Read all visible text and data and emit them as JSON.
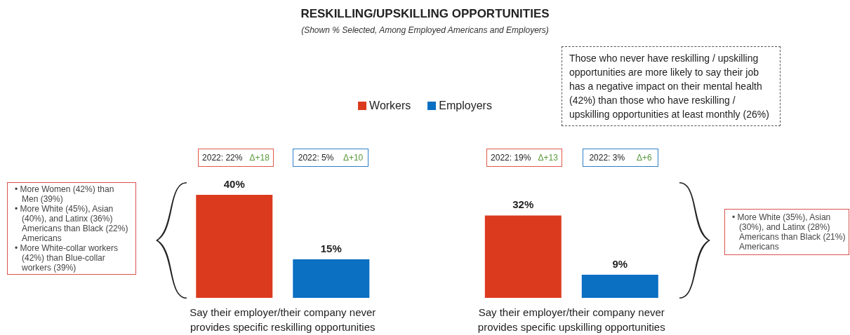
{
  "chart_data": {
    "type": "bar",
    "title": "RESKILLING/UPSKILLING OPPORTUNITIES",
    "subtitle": "(Shown % Selected, Among Employed Americans and Employers)",
    "categories": [
      "Say their employer/their company never provides specific reskilling opportunities",
      "Say their employer/their company never provides specific upskilling opportunities"
    ],
    "series": [
      {
        "name": "Workers",
        "color": "#dc3a1e",
        "values": [
          40,
          32
        ],
        "value_labels": [
          "40%",
          "32%"
        ]
      },
      {
        "name": "Employers",
        "color": "#0b6fc2",
        "values": [
          15,
          9
        ],
        "value_labels": [
          "15%",
          "9%"
        ]
      }
    ],
    "legend": "top",
    "annotations": [
      "Those who never have reskilling / upskilling opportunities are more likely to say their job has a negative impact on their mental health (42%) than those who have reskilling / upskilling opportunities at least monthly (26%)",
      "2022: 22%",
      "Δ+18",
      "2022: 5%",
      "Δ+10",
      "2022: 19%",
      "Δ+13",
      "2022: 3%",
      "Δ+6",
      "• More Women (42%) than Men (39%)",
      "• More White (45%), Asian (40%), and Latinx (36%) Americans than Black (22%) Americans",
      "• More White-collar workers (42%) than Blue-collar workers (39%)",
      "• More White (35%), Asian (30%), and Latinx (28%) Americans than Black (21%) Americans"
    ]
  }
}
